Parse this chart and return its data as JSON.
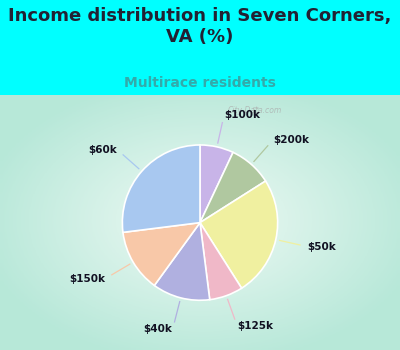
{
  "title": "Income distribution in Seven Corners,\nVA (%)",
  "subtitle": "Multirace residents",
  "labels": [
    "$100k",
    "$200k",
    "$50k",
    "$125k",
    "$40k",
    "$150k",
    "$60k"
  ],
  "sizes": [
    7,
    9,
    25,
    7,
    12,
    13,
    27
  ],
  "colors": [
    "#c8b4e8",
    "#b0c8a0",
    "#f0f0a0",
    "#f0b8c8",
    "#b0b0e0",
    "#f8c8a8",
    "#a8c8f0"
  ],
  "background_cyan": "#00ffff",
  "title_color": "#222233",
  "title_fontsize": 13,
  "subtitle_fontsize": 10,
  "subtitle_color": "#33aaaa",
  "label_fontsize": 7.5,
  "watermark": "City-Data.com"
}
